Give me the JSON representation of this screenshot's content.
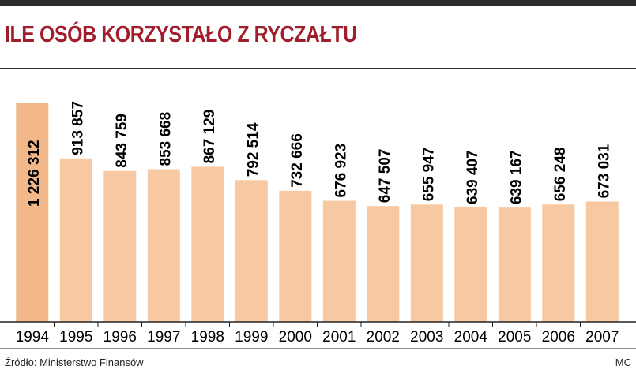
{
  "header": {
    "title": "ILE OSÓB KORZYSTAŁO Z RYCZAŁTU"
  },
  "footer": {
    "source": "Źródło: Ministerstwo Finansów",
    "credit": "MC"
  },
  "colors": {
    "title": "#a01d2b",
    "bar": "#f7c9a2",
    "bar_highlight": "#f3b889",
    "text": "#000000",
    "axis": "#222222"
  },
  "chart_data": {
    "type": "bar",
    "title": "ILE OSÓB KORZYSTAŁO Z RYCZAŁTU",
    "xlabel": "",
    "ylabel": "",
    "categories": [
      "1994",
      "1995",
      "1996",
      "1997",
      "1998",
      "1999",
      "2000",
      "2001",
      "2002",
      "2003",
      "2004",
      "2005",
      "2006",
      "2007"
    ],
    "values": [
      1226312,
      913857,
      843759,
      853668,
      867129,
      792514,
      732666,
      676923,
      647507,
      655947,
      639407,
      639167,
      656248,
      673031
    ],
    "value_labels": [
      "1 226 312",
      "913 857",
      "843 759",
      "853 668",
      "867 129",
      "792 514",
      "732 666",
      "676 923",
      "647 507",
      "655 947",
      "639 407",
      "639 167",
      "656 248",
      "673 031"
    ],
    "ylim": [
      0,
      1226312
    ],
    "grid": false,
    "legend": "none"
  }
}
